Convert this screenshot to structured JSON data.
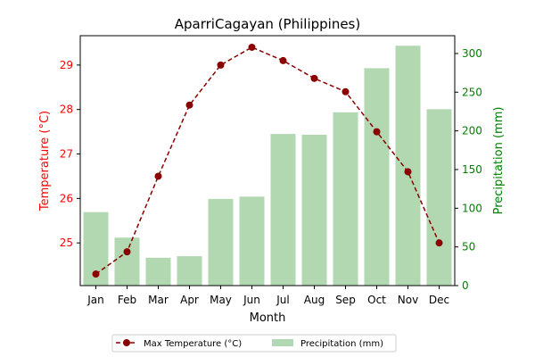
{
  "chart_data": {
    "type": "bar+line",
    "title": "AparriCagayan (Philippines)",
    "xlabel": "Month",
    "categories": [
      "Jan",
      "Feb",
      "Mar",
      "Apr",
      "May",
      "Jun",
      "Jul",
      "Aug",
      "Sep",
      "Oct",
      "Nov",
      "Dec"
    ],
    "series": [
      {
        "name": "Max Temperature (°C)",
        "type": "line",
        "axis": "left",
        "color": "#8b0000",
        "values": [
          24.3,
          24.8,
          26.5,
          28.1,
          29.0,
          29.4,
          29.1,
          28.7,
          28.4,
          27.5,
          26.6,
          25.0
        ]
      },
      {
        "name": "Precipitation (mm)",
        "type": "bar",
        "axis": "right",
        "color": "#b2d8b2",
        "values": [
          95,
          62,
          36,
          38,
          112,
          115,
          196,
          195,
          224,
          281,
          310,
          228
        ]
      }
    ],
    "y_left": {
      "label": "Temperature (°C)",
      "color": "#ff0000",
      "range": [
        24.04,
        29.66
      ],
      "ticks": [
        25,
        26,
        27,
        28,
        29
      ]
    },
    "y_right": {
      "label": "Precipitation (mm)",
      "color": "#008000",
      "range": [
        0,
        323
      ],
      "ticks": [
        0,
        50,
        100,
        150,
        200,
        250,
        300
      ]
    },
    "legend_placement": "bottom-center",
    "grid": false
  }
}
